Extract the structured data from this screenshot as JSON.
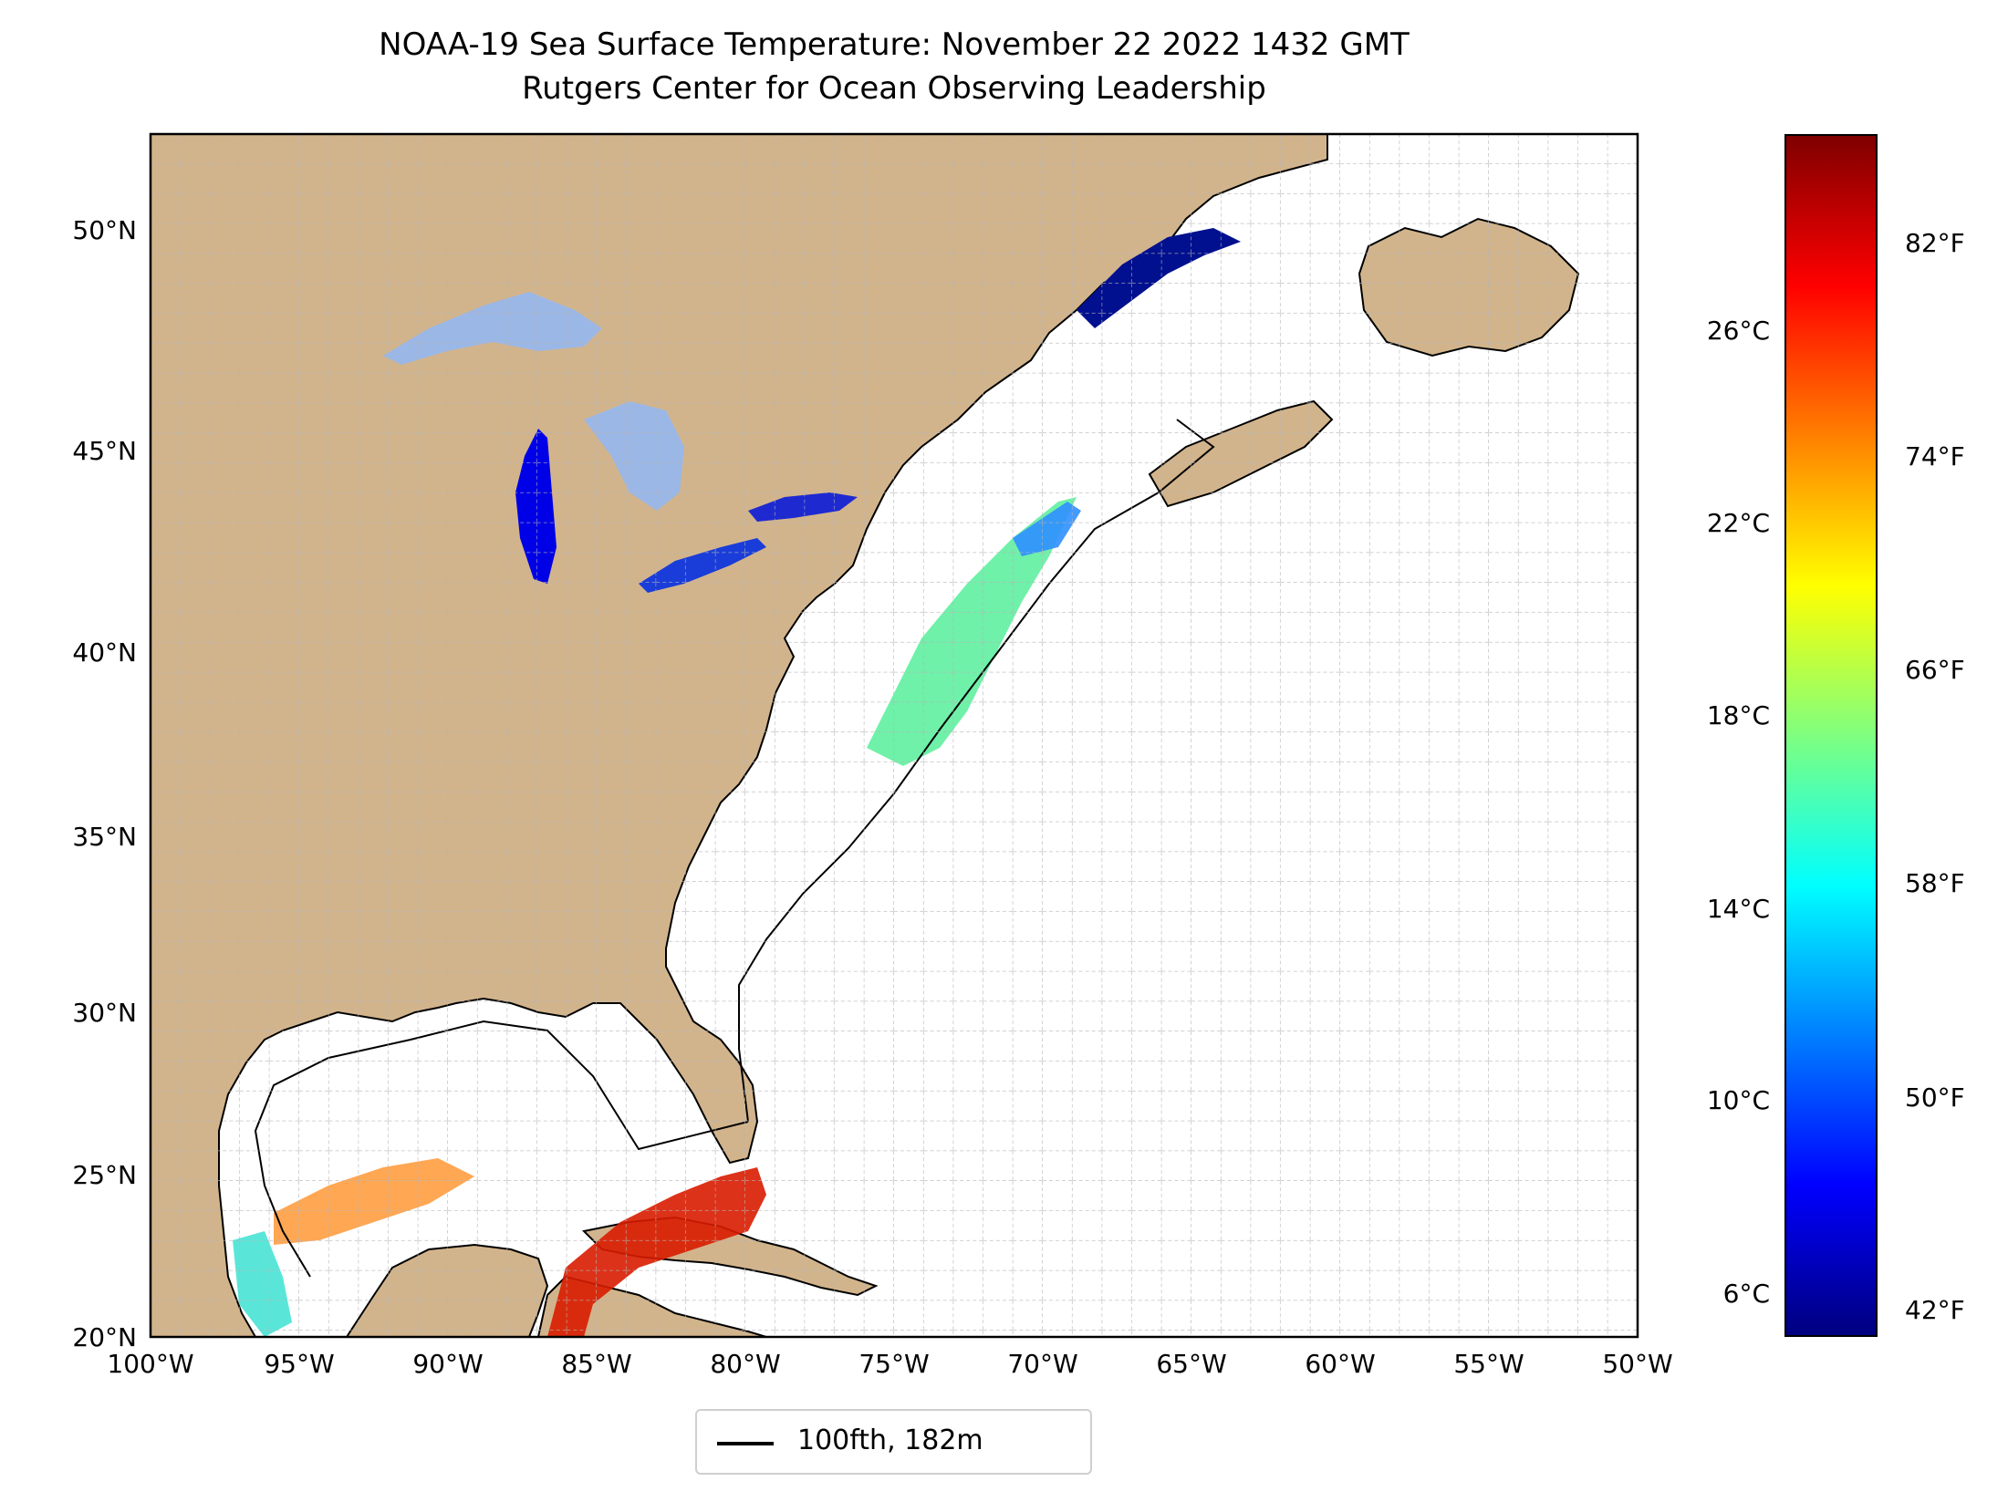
{
  "title": "NOAA-19 Sea Surface Temperature: November 22 2022 1432 GMT",
  "subtitle": "Rutgers Center for Ocean Observing Leadership",
  "map": {
    "extent": {
      "lon": [
        -100,
        -50
      ],
      "lat": [
        20,
        52
      ]
    },
    "lon_ticks": [
      "100°W",
      "95°W",
      "90°W",
      "85°W",
      "80°W",
      "75°W",
      "70°W",
      "65°W",
      "60°W",
      "55°W",
      "50°W"
    ],
    "lat_ticks": [
      "20°N",
      "25°N",
      "30°N",
      "35°N",
      "40°N",
      "45°N",
      "50°N"
    ],
    "gridlines": true,
    "colors": {
      "land": "#d2b48c",
      "lakes": "#9bb7e6",
      "border": "#000000",
      "grid": "#b5b5b5"
    }
  },
  "colorbar": {
    "celsius_ticks": [
      "6°C",
      "10°C",
      "14°C",
      "18°C",
      "22°C",
      "26°C"
    ],
    "fahrenheit_ticks": [
      "42°F",
      "50°F",
      "58°F",
      "66°F",
      "74°F",
      "82°F"
    ],
    "colormap": "jet"
  },
  "legend": {
    "label": "100fth, 182m"
  }
}
